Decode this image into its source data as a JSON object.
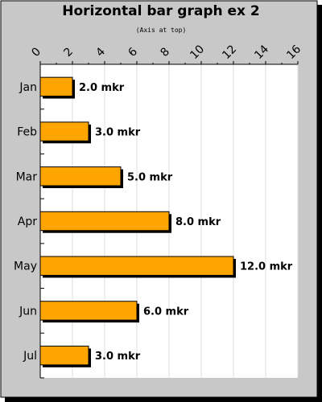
{
  "chart_data": {
    "type": "bar",
    "orientation": "horizontal",
    "title": "Horizontal bar graph ex 2",
    "subtitle": "(Axis at top)",
    "categories": [
      "Jan",
      "Feb",
      "Mar",
      "Apr",
      "May",
      "Jun",
      "Jul"
    ],
    "values": [
      2,
      3,
      5,
      8,
      12,
      6,
      3
    ],
    "value_labels": [
      "2.0 mkr",
      "3.0 mkr",
      "5.0 mkr",
      "8.0 mkr",
      "12.0 mkr",
      "6.0 mkr",
      "3.0 mkr"
    ],
    "xlim": [
      0,
      16
    ],
    "x_ticks": [
      0,
      2,
      4,
      6,
      8,
      10,
      12,
      14,
      16
    ],
    "x_tick_labels": [
      "0",
      "2",
      "4",
      "6",
      "8",
      "10",
      "12",
      "14",
      "16"
    ],
    "value_axis_position": "top",
    "grid": true,
    "legend": false,
    "colors": {
      "bar": "#ffa500",
      "bar_border": "#000000",
      "bar_shadow": "#000000",
      "background": "#c8c8c8",
      "plot_background": "#ffffff",
      "grid": "#dddddd"
    }
  }
}
